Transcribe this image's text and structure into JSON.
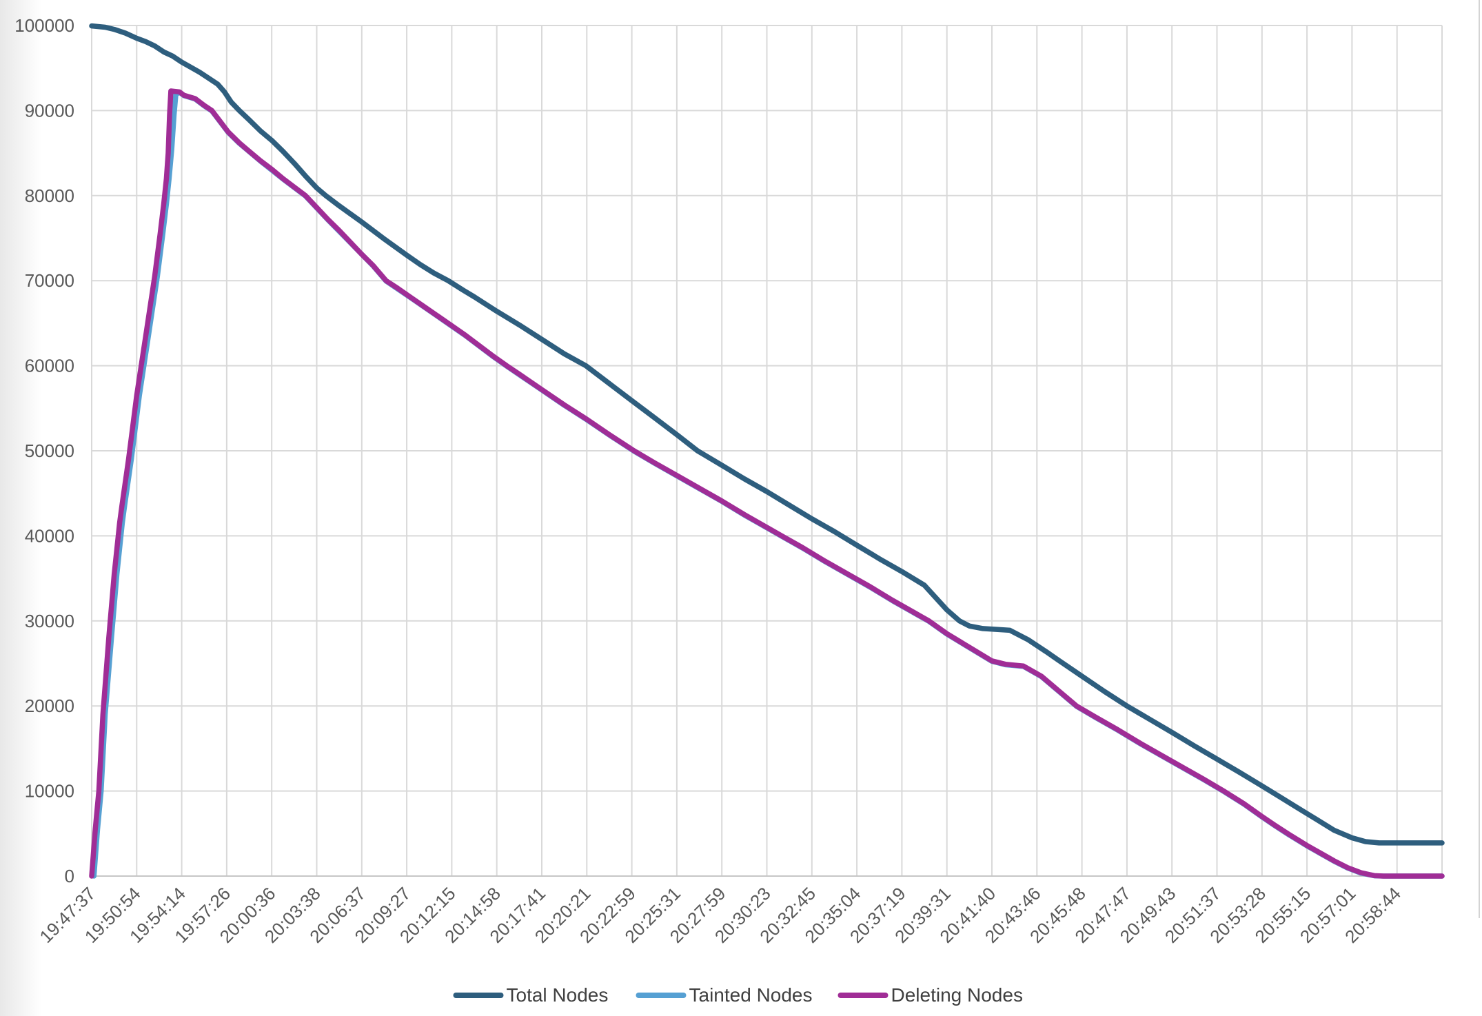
{
  "chart_data": {
    "type": "line",
    "title": "",
    "xlabel": "",
    "ylabel": "",
    "ylim": [
      0,
      100000
    ],
    "grid": true,
    "legend_position": "bottom",
    "y_ticks": [
      0,
      10000,
      20000,
      30000,
      40000,
      50000,
      60000,
      70000,
      80000,
      90000,
      100000
    ],
    "x_categories": [
      "19:47:37",
      "19:50:54",
      "19:54:14",
      "19:57:26",
      "20:00:36",
      "20:03:38",
      "20:06:37",
      "20:09:27",
      "20:12:15",
      "20:14:58",
      "20:17:41",
      "20:20:21",
      "20:22:59",
      "20:25:31",
      "20:27:59",
      "20:30:23",
      "20:32:45",
      "20:35:04",
      "20:37:19",
      "20:39:31",
      "20:41:40",
      "20:43:46",
      "20:45:48",
      "20:47:47",
      "20:49:43",
      "20:51:37",
      "20:53:28",
      "20:55:15",
      "20:57:01",
      "20:58:44"
    ],
    "x_extent_intervals": 30,
    "series": [
      {
        "name": "Total Nodes",
        "color": "#2E5E7E",
        "points": [
          [
            0,
            99950
          ],
          [
            0.3,
            99800
          ],
          [
            0.5,
            99550
          ],
          [
            0.75,
            99100
          ],
          [
            1,
            98500
          ],
          [
            1.2,
            98100
          ],
          [
            1.4,
            97600
          ],
          [
            1.6,
            96900
          ],
          [
            1.8,
            96400
          ],
          [
            2,
            95700
          ],
          [
            2.2,
            95100
          ],
          [
            2.4,
            94500
          ],
          [
            2.6,
            93800
          ],
          [
            2.8,
            93100
          ],
          [
            2.95,
            92200
          ],
          [
            3.1,
            91000
          ],
          [
            3.28,
            90000
          ],
          [
            3.5,
            88900
          ],
          [
            3.75,
            87600
          ],
          [
            4,
            86500
          ],
          [
            4.25,
            85200
          ],
          [
            4.5,
            83800
          ],
          [
            4.75,
            82300
          ],
          [
            5,
            80900
          ],
          [
            5.2,
            80000
          ],
          [
            5.5,
            78800
          ],
          [
            6,
            76900
          ],
          [
            6.5,
            74900
          ],
          [
            7,
            73000
          ],
          [
            7.3,
            71900
          ],
          [
            7.6,
            70900
          ],
          [
            7.92,
            70000
          ],
          [
            8.25,
            68900
          ],
          [
            8.5,
            68100
          ],
          [
            9,
            66400
          ],
          [
            9.5,
            64800
          ],
          [
            10,
            63100
          ],
          [
            10.5,
            61400
          ],
          [
            10.98,
            60000
          ],
          [
            11.5,
            57900
          ],
          [
            12,
            55900
          ],
          [
            12.5,
            53900
          ],
          [
            13,
            51900
          ],
          [
            13.46,
            50000
          ],
          [
            14,
            48300
          ],
          [
            14.5,
            46700
          ],
          [
            15,
            45200
          ],
          [
            15.5,
            43600
          ],
          [
            16,
            42000
          ],
          [
            16.5,
            40500
          ],
          [
            17,
            38900
          ],
          [
            17.5,
            37300
          ],
          [
            18,
            35800
          ],
          [
            18.5,
            34200
          ],
          [
            19,
            31300
          ],
          [
            19.28,
            30000
          ],
          [
            19.5,
            29400
          ],
          [
            19.8,
            29100
          ],
          [
            20.4,
            28900
          ],
          [
            20.8,
            27800
          ],
          [
            21.2,
            26400
          ],
          [
            21.5,
            25300
          ],
          [
            22,
            23500
          ],
          [
            22.5,
            21700
          ],
          [
            23,
            20000
          ],
          [
            23.5,
            18450
          ],
          [
            24,
            16900
          ],
          [
            24.5,
            15300
          ],
          [
            25,
            13750
          ],
          [
            25.5,
            12200
          ],
          [
            26,
            10600
          ],
          [
            26.4,
            9300
          ],
          [
            26.8,
            8000
          ],
          [
            27.2,
            6700
          ],
          [
            27.6,
            5400
          ],
          [
            28,
            4500
          ],
          [
            28.3,
            4050
          ],
          [
            28.6,
            3900
          ],
          [
            30,
            3900
          ]
        ]
      },
      {
        "name": "Tainted Nodes",
        "color": "#56A0D3",
        "points": [
          [
            0.05,
            0
          ],
          [
            0.13,
            5500
          ],
          [
            0.21,
            10000
          ],
          [
            0.3,
            19000
          ],
          [
            0.44,
            28000
          ],
          [
            0.56,
            35500
          ],
          [
            0.68,
            41500
          ],
          [
            0.73,
            43500
          ],
          [
            0.88,
            49000
          ],
          [
            1.06,
            56500
          ],
          [
            1.26,
            63500
          ],
          [
            1.46,
            70500
          ],
          [
            1.58,
            75500
          ],
          [
            1.66,
            79000
          ],
          [
            1.72,
            82000
          ],
          [
            1.78,
            85500
          ],
          [
            1.83,
            89500
          ],
          [
            1.87,
            91900
          ],
          [
            1.95,
            92150
          ],
          [
            2.05,
            91750
          ],
          [
            2.3,
            91350
          ],
          [
            2.5,
            90550
          ],
          [
            2.67,
            89950
          ],
          [
            3.03,
            87450
          ],
          [
            3.28,
            86150
          ],
          [
            3.75,
            84050
          ],
          [
            4.25,
            81950
          ],
          [
            4.75,
            79950
          ],
          [
            5.25,
            77150
          ],
          [
            5.75,
            74450
          ],
          [
            6.25,
            71750
          ],
          [
            6.54,
            69950
          ],
          [
            7.1,
            67950
          ],
          [
            7.7,
            65750
          ],
          [
            8.3,
            63550
          ],
          [
            8.9,
            61150
          ],
          [
            9.22,
            59950
          ],
          [
            10,
            57150
          ],
          [
            10.5,
            55350
          ],
          [
            11,
            53650
          ],
          [
            11.5,
            51850
          ],
          [
            12.05,
            49950
          ],
          [
            12.5,
            48550
          ],
          [
            13,
            47050
          ],
          [
            13.5,
            45550
          ],
          [
            14,
            44050
          ],
          [
            14.5,
            42450
          ],
          [
            15,
            40950
          ],
          [
            15.33,
            39950
          ],
          [
            15.8,
            38550
          ],
          [
            16.3,
            36950
          ],
          [
            16.8,
            35450
          ],
          [
            17.3,
            33950
          ],
          [
            17.8,
            32350
          ],
          [
            18.3,
            30850
          ],
          [
            18.6,
            29950
          ],
          [
            19,
            28450
          ],
          [
            19.5,
            26850
          ],
          [
            20,
            25250
          ],
          [
            20.3,
            24850
          ],
          [
            20.7,
            24650
          ],
          [
            21.1,
            23450
          ],
          [
            21.5,
            21650
          ],
          [
            21.88,
            19950
          ],
          [
            22.3,
            18650
          ],
          [
            22.8,
            17150
          ],
          [
            23.3,
            15550
          ],
          [
            23.8,
            14050
          ],
          [
            24.3,
            12550
          ],
          [
            24.7,
            11350
          ],
          [
            25.15,
            9950
          ],
          [
            25.6,
            8450
          ],
          [
            26,
            6950
          ],
          [
            26.28,
            5950
          ],
          [
            26.6,
            4850
          ],
          [
            27,
            3550
          ],
          [
            27.3,
            2650
          ],
          [
            27.6,
            1750
          ],
          [
            27.9,
            950
          ],
          [
            28.2,
            350
          ],
          [
            28.5,
            30
          ],
          [
            28.7,
            0
          ],
          [
            30,
            0
          ]
        ]
      },
      {
        "name": "Deleting Nodes",
        "color": "#A02D96",
        "points": [
          [
            0,
            0
          ],
          [
            0.08,
            5500
          ],
          [
            0.16,
            10000
          ],
          [
            0.25,
            19000
          ],
          [
            0.38,
            28000
          ],
          [
            0.5,
            35500
          ],
          [
            0.62,
            41500
          ],
          [
            0.67,
            43500
          ],
          [
            0.82,
            49000
          ],
          [
            1,
            56500
          ],
          [
            1.2,
            63500
          ],
          [
            1.4,
            70500
          ],
          [
            1.52,
            75500
          ],
          [
            1.6,
            79000
          ],
          [
            1.66,
            82000
          ],
          [
            1.7,
            85000
          ],
          [
            1.73,
            89500
          ],
          [
            1.76,
            92300
          ],
          [
            1.95,
            92200
          ],
          [
            2.05,
            91800
          ],
          [
            2.3,
            91400
          ],
          [
            2.5,
            90600
          ],
          [
            2.67,
            90000
          ],
          [
            3.03,
            87500
          ],
          [
            3.28,
            86200
          ],
          [
            3.5,
            85200
          ],
          [
            3.75,
            84100
          ],
          [
            4,
            83100
          ],
          [
            4.25,
            82000
          ],
          [
            4.5,
            81000
          ],
          [
            4.75,
            80000
          ],
          [
            5,
            78600
          ],
          [
            5.25,
            77200
          ],
          [
            5.5,
            75900
          ],
          [
            5.75,
            74500
          ],
          [
            6,
            73100
          ],
          [
            6.25,
            71800
          ],
          [
            6.54,
            70000
          ],
          [
            6.8,
            69100
          ],
          [
            7.1,
            68000
          ],
          [
            7.4,
            66900
          ],
          [
            7.7,
            65800
          ],
          [
            8,
            64700
          ],
          [
            8.3,
            63600
          ],
          [
            8.6,
            62400
          ],
          [
            8.9,
            61200
          ],
          [
            9.22,
            60000
          ],
          [
            9.5,
            59000
          ],
          [
            10,
            57200
          ],
          [
            10.5,
            55400
          ],
          [
            11,
            53700
          ],
          [
            11.5,
            51900
          ],
          [
            12.05,
            50000
          ],
          [
            12.5,
            48600
          ],
          [
            13,
            47100
          ],
          [
            13.5,
            45600
          ],
          [
            14,
            44100
          ],
          [
            14.5,
            42500
          ],
          [
            15,
            41000
          ],
          [
            15.33,
            40000
          ],
          [
            15.8,
            38600
          ],
          [
            16.3,
            37000
          ],
          [
            16.8,
            35500
          ],
          [
            17.3,
            34000
          ],
          [
            17.8,
            32400
          ],
          [
            18.3,
            30900
          ],
          [
            18.6,
            30000
          ],
          [
            19,
            28500
          ],
          [
            19.5,
            26900
          ],
          [
            20,
            25300
          ],
          [
            20.3,
            24900
          ],
          [
            20.7,
            24700
          ],
          [
            21.1,
            23500
          ],
          [
            21.5,
            21700
          ],
          [
            21.88,
            20000
          ],
          [
            22.3,
            18700
          ],
          [
            22.8,
            17200
          ],
          [
            23.3,
            15600
          ],
          [
            23.8,
            14100
          ],
          [
            24.3,
            12600
          ],
          [
            24.7,
            11400
          ],
          [
            25.15,
            10000
          ],
          [
            25.6,
            8500
          ],
          [
            26,
            7000
          ],
          [
            26.28,
            6000
          ],
          [
            26.6,
            4900
          ],
          [
            27,
            3600
          ],
          [
            27.3,
            2700
          ],
          [
            27.6,
            1800
          ],
          [
            27.9,
            1000
          ],
          [
            28.2,
            400
          ],
          [
            28.5,
            50
          ],
          [
            28.7,
            0
          ],
          [
            30,
            0
          ]
        ]
      }
    ]
  },
  "style": {
    "grid_color": "#D9D9D9",
    "axis_line_color": "#C6C6C6",
    "tick_label_color": "#595959",
    "legend_text_color": "#404040",
    "window_edge_color": "#D4D4D4",
    "left_shadow_color": "#E8E8E8"
  }
}
